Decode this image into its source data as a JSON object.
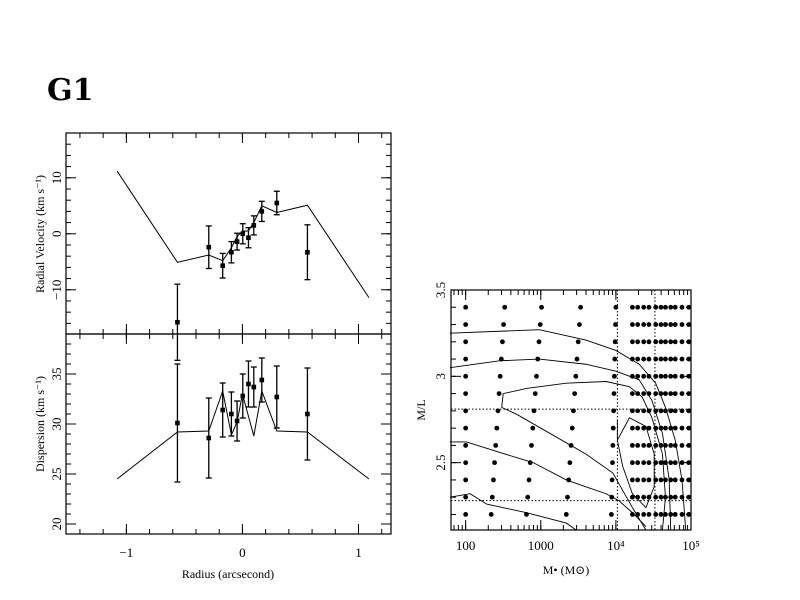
{
  "figure": {
    "title": "G1"
  },
  "chart_data": [
    {
      "type": "scatter",
      "id": "velocity",
      "title": "",
      "xlabel": "",
      "ylabel": "Radial Velocity (km s⁻¹)",
      "xlim": [
        -1.52,
        1.28
      ],
      "ylim": [
        -17.9,
        18.0
      ],
      "xticks_major": [
        -1,
        0,
        1
      ],
      "xtick_minor_step": 0.2,
      "yticks": [
        -10,
        0,
        10
      ],
      "ytick_labels": [
        "−10",
        "0",
        "10"
      ],
      "ytick_minor_step": 2,
      "points": [
        {
          "x": -0.56,
          "y": -15.8,
          "err": 6.8
        },
        {
          "x": -0.29,
          "y": -2.4,
          "err": 3.8
        },
        {
          "x": -0.17,
          "y": -5.7,
          "err": 2.2
        },
        {
          "x": -0.095,
          "y": -3.3,
          "err": 1.9
        },
        {
          "x": -0.046,
          "y": -1.4,
          "err": 1.5
        },
        {
          "x": 0.003,
          "y": 0.0,
          "err": 1.8
        },
        {
          "x": 0.052,
          "y": -0.7,
          "err": 1.8
        },
        {
          "x": 0.098,
          "y": 1.5,
          "err": 1.7
        },
        {
          "x": 0.167,
          "y": 4.0,
          "err": 1.8
        },
        {
          "x": 0.296,
          "y": 5.5,
          "err": 2.1
        },
        {
          "x": 0.56,
          "y": -3.3,
          "err": 4.9
        }
      ],
      "model": {
        "x": [
          -1.08,
          -0.56,
          -0.29,
          -0.17,
          -0.095,
          -0.046,
          0.0,
          0.05,
          0.098,
          0.167,
          0.296,
          0.56,
          1.09
        ],
        "y": [
          11.2,
          -5.1,
          -3.8,
          -4.8,
          -2.5,
          -0.5,
          0.5,
          0.5,
          2.0,
          5.0,
          3.8,
          5.1,
          -11.4
        ]
      }
    },
    {
      "type": "scatter",
      "id": "dispersion",
      "title": "",
      "xlabel": "Radius (arcsecond)",
      "ylabel": "Dispersion (km s⁻¹)",
      "xlim": [
        -1.52,
        1.28
      ],
      "ylim": [
        19,
        39
      ],
      "xticks": [
        -1,
        0,
        1
      ],
      "xtick_labels": [
        "−1",
        "0",
        "1"
      ],
      "xtick_minor_step": 0.2,
      "yticks": [
        20,
        25,
        30,
        35
      ],
      "ytick_labels": [
        "20",
        "25",
        "30",
        "35"
      ],
      "ytick_minor_step": 1,
      "points": [
        {
          "x": -0.56,
          "y": 30.1,
          "err": 5.9
        },
        {
          "x": -0.29,
          "y": 28.6,
          "err": 4.0
        },
        {
          "x": -0.17,
          "y": 31.4,
          "err": 2.7
        },
        {
          "x": -0.095,
          "y": 31.0,
          "err": 2.2
        },
        {
          "x": -0.046,
          "y": 30.3,
          "err": 2.0
        },
        {
          "x": 0.003,
          "y": 32.8,
          "err": 2.2
        },
        {
          "x": 0.052,
          "y": 34.0,
          "err": 2.3
        },
        {
          "x": 0.098,
          "y": 33.7,
          "err": 2.0
        },
        {
          "x": 0.167,
          "y": 34.4,
          "err": 2.2
        },
        {
          "x": 0.296,
          "y": 32.7,
          "err": 3.1
        },
        {
          "x": 0.56,
          "y": 31.0,
          "err": 4.6
        }
      ],
      "model": {
        "x": [
          -1.08,
          -0.56,
          -0.29,
          -0.17,
          -0.095,
          -0.046,
          0.0,
          0.098,
          0.167,
          0.296,
          0.56,
          1.09
        ],
        "y": [
          24.5,
          29.2,
          29.3,
          33.3,
          28.9,
          30.2,
          33.0,
          28.8,
          33.3,
          29.3,
          29.2,
          24.5
        ]
      }
    },
    {
      "type": "scatter",
      "id": "mass-ml-grid",
      "title": "",
      "xlabel": "M• (M⊙)",
      "ylabel": "M/L",
      "xscale": "log",
      "xlim_log10": [
        1.805,
        5.0
      ],
      "ylim": [
        2.11,
        3.5
      ],
      "xticks_log10": [
        2,
        3,
        4,
        5
      ],
      "xtick_labels": [
        "100",
        "1000",
        "10⁴",
        "10⁵"
      ],
      "yticks": [
        2.5,
        3,
        3.5
      ],
      "ytick_labels": [
        "2.5",
        "3",
        "3.5"
      ],
      "ytick_minor_step": 0.1,
      "grid": {
        "ml_rows": [
          3.4,
          3.3,
          3.2,
          3.1,
          3.0,
          2.9,
          2.8,
          2.7,
          2.6,
          2.5,
          2.4,
          2.3,
          2.2
        ],
        "sparse_log10M_top_row": [
          2.0,
          2.52,
          3.01,
          3.53,
          4.0
        ],
        "sparse_log10M_bottom_row": [
          2.0,
          2.34,
          2.81,
          3.34,
          3.94
        ],
        "dense_log10M": [
          4.22,
          4.29,
          4.37,
          4.44,
          4.53,
          4.6,
          4.66,
          4.73,
          4.79,
          4.88,
          4.97
        ]
      },
      "reference_lines": {
        "log10M": [
          4.02,
          4.52
        ],
        "ml": [
          2.81,
          2.28
        ]
      },
      "contours": [
        {
          "log10M": [
            1.79,
            2.98,
            3.6,
            4.0,
            4.31,
            4.53,
            4.66,
            4.79,
            4.88,
            4.93
          ],
          "ml": [
            3.25,
            3.27,
            3.21,
            3.15,
            3.07,
            2.96,
            2.82,
            2.63,
            2.4,
            2.11
          ]
        },
        {
          "log10M": [
            1.79,
            2.45,
            2.98,
            3.6,
            4.0,
            4.31,
            4.48,
            4.62,
            4.71,
            4.73
          ],
          "ml": [
            3.05,
            3.09,
            3.1,
            3.07,
            3.03,
            2.98,
            2.86,
            2.67,
            2.4,
            2.11
          ]
        },
        {
          "log10M": [
            4.4,
            4.22,
            3.96,
            3.6,
            3.12,
            2.68,
            2.48,
            2.5,
            2.81,
            3.34,
            3.87,
            4.18,
            4.35,
            4.48,
            4.62,
            4.66,
            4.62
          ],
          "ml": [
            2.11,
            2.24,
            2.44,
            2.55,
            2.67,
            2.78,
            2.82,
            2.9,
            2.93,
            2.96,
            2.97,
            2.94,
            2.88,
            2.76,
            2.55,
            2.3,
            2.11
          ]
        },
        {
          "log10M": [
            1.79,
            2.01,
            2.45,
            2.9,
            3.34,
            3.6,
            3.87,
            4.04,
            4.22,
            4.4
          ],
          "ml": [
            2.62,
            2.62,
            2.56,
            2.5,
            2.4,
            2.36,
            2.32,
            2.28,
            2.21,
            2.13
          ]
        },
        {
          "log10M": [
            4.02,
            4.18,
            4.4,
            4.51,
            4.51,
            4.4,
            4.22,
            4.09,
            4.02,
            4.02
          ],
          "ml": [
            2.63,
            2.76,
            2.71,
            2.55,
            2.36,
            2.24,
            2.32,
            2.48,
            2.63,
            2.75
          ]
        },
        {
          "log10M": [
            1.79,
            2.06,
            2.28,
            2.81,
            3.34,
            3.47
          ],
          "ml": [
            2.3,
            2.32,
            2.26,
            2.21,
            2.15,
            2.11
          ]
        }
      ]
    }
  ]
}
